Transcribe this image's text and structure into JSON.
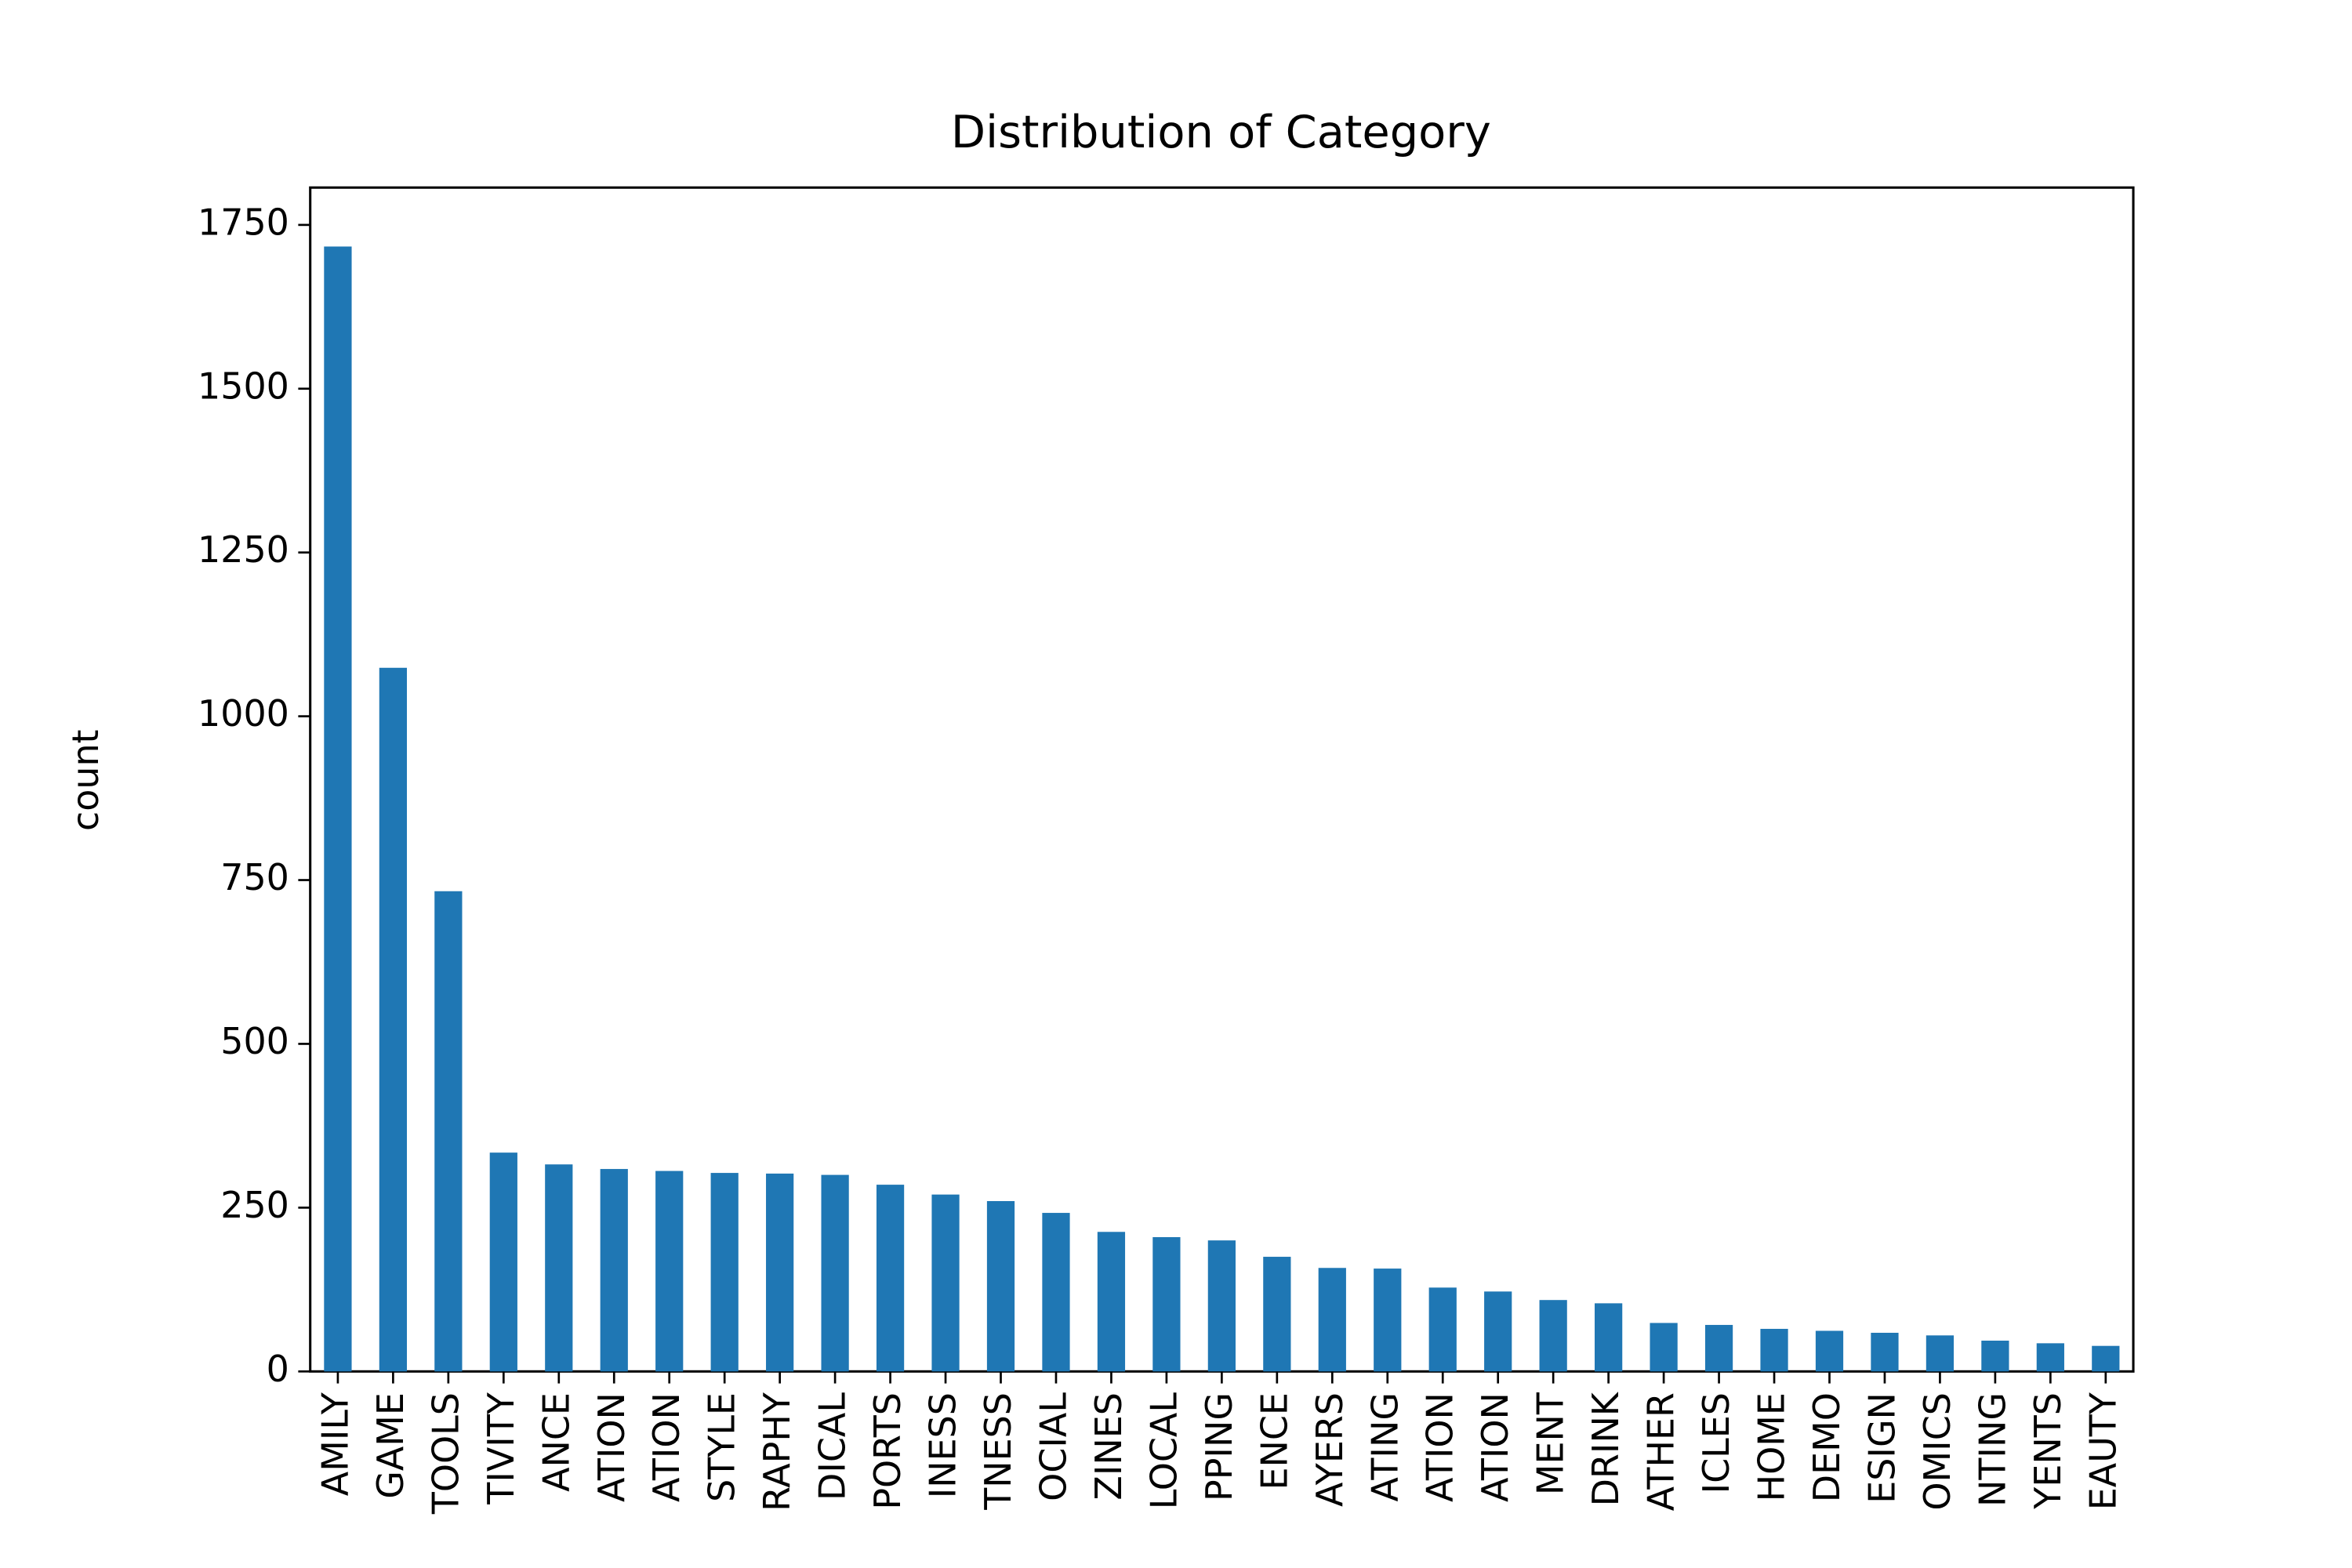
{
  "chart_data": {
    "type": "bar",
    "title": "Distribution of Category",
    "ylabel": "count",
    "categories": [
      "AMILY",
      "GAME",
      "TOOLS",
      "TIVITY",
      "ANCE",
      "ATION",
      "ATION",
      "STYLE",
      "RAPHY",
      "DICAL",
      "PORTS",
      "INESS",
      "TNESS",
      "OCIAL",
      "ZINES",
      "LOCAL",
      "PPING",
      "ENCE",
      "AYERS",
      "ATING",
      "ATION",
      "ATION",
      "MENT",
      "DRINK",
      "ATHER",
      "ICLES",
      "HOME",
      "DEMO",
      "ESIGN",
      "OMICS",
      "NTING",
      "YENTS",
      "EAUTY"
    ],
    "values": [
      1717,
      1074,
      733,
      334,
      316,
      309,
      306,
      303,
      302,
      300,
      285,
      270,
      260,
      242,
      213,
      205,
      200,
      175,
      158,
      157,
      128,
      122,
      109,
      104,
      74,
      71,
      65,
      62,
      59,
      55,
      47,
      43,
      39
    ],
    "color": "#1f77b4",
    "ylim": [
      0,
      1807
    ],
    "yticks": [
      0,
      250,
      500,
      750,
      1000,
      1250,
      1500,
      1750
    ],
    "grid": false
  }
}
